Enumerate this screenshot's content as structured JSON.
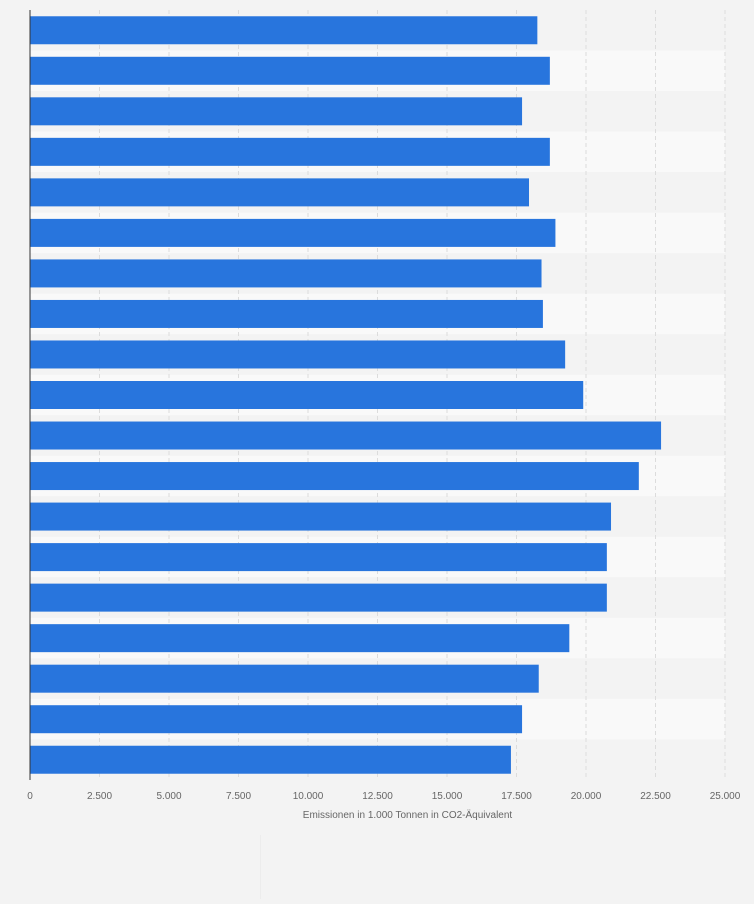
{
  "chart_data": {
    "type": "bar",
    "orientation": "horizontal",
    "categories": [
      "",
      "",
      "",
      "",
      "",
      "",
      "",
      "",
      "",
      "",
      "",
      "",
      "",
      "",
      "",
      "",
      "",
      "",
      ""
    ],
    "values": [
      18250,
      18700,
      17700,
      18700,
      17950,
      18900,
      18400,
      18450,
      19250,
      19900,
      22700,
      21900,
      20900,
      20750,
      20750,
      19400,
      18300,
      17700,
      17300
    ],
    "xlim": [
      0,
      25000
    ],
    "xticks": [
      0,
      2500,
      5000,
      7500,
      10000,
      12500,
      15000,
      17500,
      20000,
      22500,
      25000
    ],
    "xtick_labels": [
      "0",
      "2.500",
      "5.000",
      "7.500",
      "10.000",
      "12.500",
      "15.000",
      "17.500",
      "20.000",
      "22.500",
      "25.000"
    ],
    "xlabel": "Emissionen in 1.000 Tonnen in CO2-Äquivalent",
    "ylabel": "",
    "title": "",
    "grid": "vertical dashed",
    "bar_color": "#2875dd",
    "band_colors": [
      "#f3f3f3",
      "#f9f9f9"
    ]
  }
}
